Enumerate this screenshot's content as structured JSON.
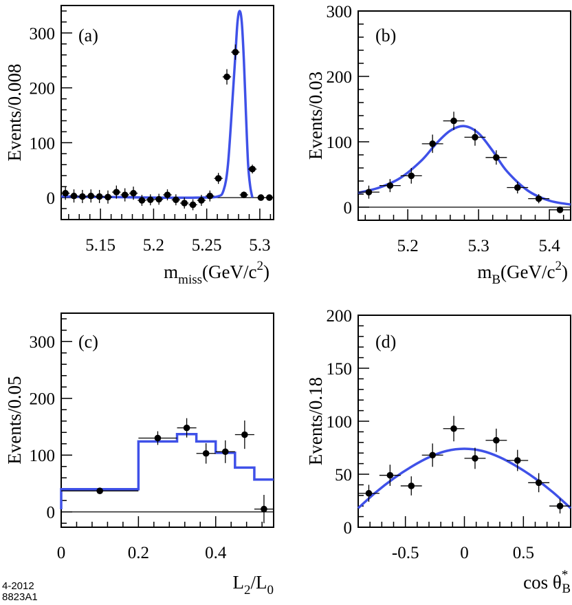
{
  "footer": {
    "line1": "4-2012",
    "line2": "8823A1"
  },
  "chart_data": [
    {
      "id": "a",
      "type": "scatter",
      "panel_label": "(a)",
      "ylabel": "Events/0.008",
      "xlabel": {
        "main": "m",
        "sub": "miss",
        "unit": "(GeV/c",
        "sup": "2",
        "close": ")"
      },
      "xlim": [
        5.113,
        5.313
      ],
      "ylim": [
        -40,
        350
      ],
      "xticks": [
        5.15,
        5.2,
        5.25,
        5.3
      ],
      "xtick_labels": [
        "5.15",
        "5.2",
        "5.25",
        "5.3"
      ],
      "yticks": [
        0,
        100,
        200,
        300
      ],
      "ytick_labels": [
        "0",
        "100",
        "200",
        "300"
      ],
      "baseline": 0,
      "points": {
        "x": [
          5.117,
          5.125,
          5.133,
          5.141,
          5.149,
          5.157,
          5.165,
          5.173,
          5.181,
          5.189,
          5.197,
          5.205,
          5.213,
          5.221,
          5.229,
          5.237,
          5.245,
          5.253,
          5.261,
          5.269,
          5.277,
          5.285,
          5.293,
          5.301,
          5.309
        ],
        "y": [
          8,
          3,
          2,
          3,
          2,
          1,
          10,
          5,
          8,
          -5,
          -4,
          -3,
          5,
          -4,
          -10,
          -13,
          -5,
          3,
          35,
          220,
          265,
          5,
          52,
          0,
          0
        ],
        "xerr": 0.004,
        "yerr": [
          12,
          12,
          12,
          12,
          12,
          12,
          12,
          12,
          12,
          10,
          10,
          10,
          10,
          10,
          10,
          10,
          10,
          10,
          10,
          14,
          14,
          6,
          8,
          3,
          3
        ]
      },
      "fit": {
        "x": [
          5.113,
          5.16,
          5.2,
          5.24,
          5.26,
          5.266,
          5.27,
          5.274,
          5.277,
          5.279,
          5.281,
          5.283,
          5.285,
          5.287,
          5.289,
          5.291,
          5.293
        ],
        "y": [
          2,
          1,
          0,
          0,
          2,
          14,
          60,
          170,
          260,
          320,
          340,
          320,
          250,
          150,
          60,
          20,
          0
        ]
      }
    },
    {
      "id": "b",
      "type": "scatter",
      "panel_label": "(b)",
      "ylabel": "Events/0.03",
      "xlabel": {
        "main": "m",
        "sub": "B",
        "unit": "(GeV/c",
        "sup": "2",
        "close": ")"
      },
      "xlim": [
        5.13,
        5.43
      ],
      "ylim": [
        -20,
        300
      ],
      "xticks": [
        5.2,
        5.3,
        5.4
      ],
      "xtick_labels": [
        "5.2",
        "5.3",
        "5.4"
      ],
      "yticks": [
        0,
        100,
        200,
        300
      ],
      "ytick_labels": [
        "0",
        "100",
        "200",
        "300"
      ],
      "baseline": 0,
      "points": {
        "x": [
          5.145,
          5.175,
          5.205,
          5.235,
          5.265,
          5.295,
          5.325,
          5.355,
          5.385,
          5.415
        ],
        "y": [
          23,
          33,
          48,
          97,
          132,
          107,
          76,
          30,
          13,
          -4
        ],
        "xerr": 0.015,
        "yerr": [
          10,
          10,
          12,
          14,
          14,
          13,
          11,
          9,
          7,
          5
        ]
      },
      "fit": {
        "x": [
          5.13,
          5.16,
          5.19,
          5.22,
          5.24,
          5.26,
          5.28,
          5.3,
          5.32,
          5.34,
          5.37,
          5.4,
          5.43
        ],
        "y": [
          22,
          30,
          45,
          72,
          97,
          117,
          124,
          113,
          86,
          55,
          25,
          10,
          4
        ]
      }
    },
    {
      "id": "c",
      "type": "scatter",
      "panel_label": "(c)",
      "ylabel": "Events/0.05",
      "xlabel": {
        "main": "L",
        "sub": "2",
        "unit": "/L",
        "sup": "",
        "sub2": "0",
        "close": ""
      },
      "xlim": [
        0,
        0.55
      ],
      "ylim": [
        -27,
        350
      ],
      "xticks": [
        0,
        0.2,
        0.4
      ],
      "xtick_labels": [
        "0",
        "0.2",
        "0.4"
      ],
      "yticks": [
        0,
        100,
        200,
        300
      ],
      "ytick_labels": [
        "0",
        "100",
        "200",
        "300"
      ],
      "baseline": 0,
      "points": {
        "x": [
          0.1,
          0.25,
          0.325,
          0.375,
          0.425,
          0.475,
          0.525
        ],
        "y": [
          37,
          130,
          148,
          103,
          106,
          136,
          5
        ],
        "xerr": [
          0.1,
          0.05,
          0.025,
          0.025,
          0.025,
          0.025,
          0.025
        ],
        "yerr": [
          3,
          12,
          17,
          18,
          20,
          25,
          25
        ]
      },
      "fit_histogram": {
        "edges": [
          0,
          0.2,
          0.3,
          0.35,
          0.4,
          0.45,
          0.5,
          0.55
        ],
        "values": [
          40,
          124,
          137,
          124,
          104,
          78,
          57
        ]
      }
    },
    {
      "id": "d",
      "type": "scatter",
      "panel_label": "(d)",
      "ylabel": "Events/0.18",
      "xlabel": {
        "main": "cos ",
        "theta": "θ",
        "sub": "B",
        "sup": "*"
      },
      "xlim": [
        -0.9,
        0.9
      ],
      "ylim": [
        0,
        200
      ],
      "xticks": [
        -0.5,
        0,
        0.5
      ],
      "xtick_labels": [
        "-0.5",
        "0",
        "0.5"
      ],
      "yticks": [
        0,
        50,
        100,
        150,
        200
      ],
      "ytick_labels": [
        "0",
        "50",
        "100",
        "150",
        "200"
      ],
      "baseline": null,
      "points": {
        "x": [
          -0.81,
          -0.63,
          -0.45,
          -0.27,
          -0.09,
          0.09,
          0.27,
          0.45,
          0.63,
          0.81
        ],
        "y": [
          32,
          49,
          39,
          68,
          93,
          65,
          82,
          63,
          42,
          20
        ],
        "xerr": 0.09,
        "yerr": [
          8,
          10,
          9,
          11,
          12,
          10,
          11,
          10,
          9,
          7
        ]
      },
      "fit": {
        "x": [
          -0.9,
          -0.75,
          -0.6,
          -0.45,
          -0.3,
          -0.15,
          0,
          0.15,
          0.3,
          0.45,
          0.6,
          0.75,
          0.9
        ],
        "y": [
          18,
          33,
          46,
          57,
          66,
          72,
          74,
          72,
          66,
          57,
          46,
          33,
          18
        ]
      }
    }
  ]
}
